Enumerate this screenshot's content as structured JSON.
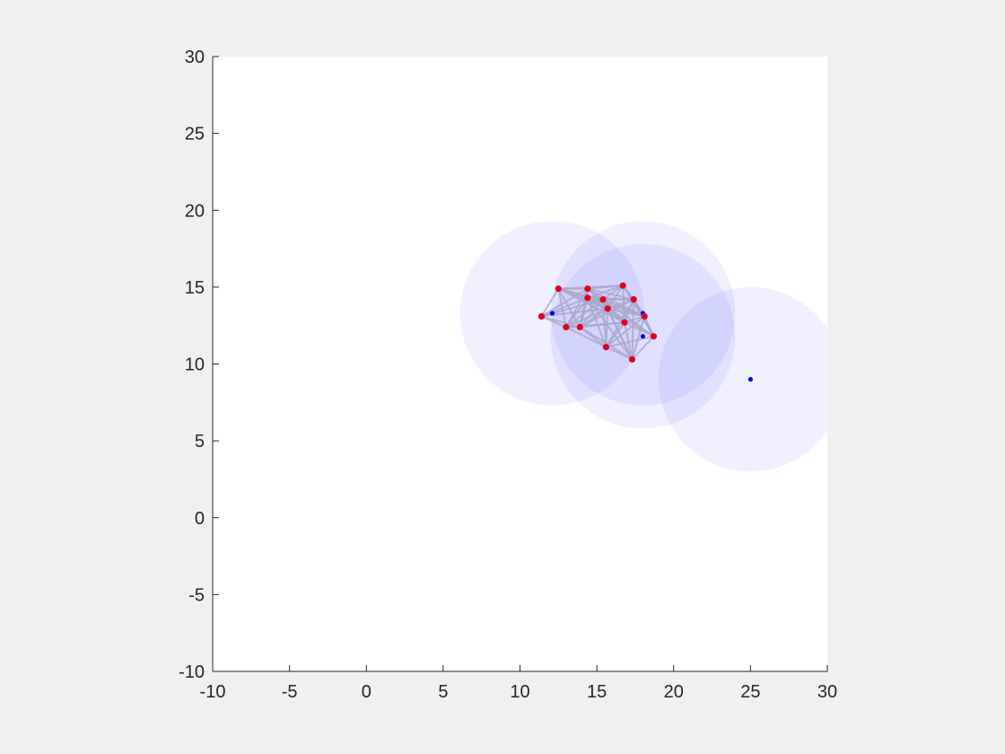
{
  "chart_data": {
    "type": "scatter",
    "title": "",
    "xlabel": "",
    "ylabel": "",
    "xlim": [
      -10,
      30
    ],
    "ylim": [
      -10,
      30
    ],
    "x_ticks": [
      -10,
      -5,
      0,
      5,
      10,
      15,
      20,
      25,
      30
    ],
    "y_ticks": [
      -10,
      -5,
      0,
      5,
      10,
      15,
      20,
      25,
      30
    ],
    "x_tick_labels": [
      "-10",
      "-5",
      "0",
      "5",
      "10",
      "15",
      "20",
      "25",
      "30"
    ],
    "y_tick_labels": [
      "-10",
      "-5",
      "0",
      "5",
      "10",
      "15",
      "20",
      "25",
      "30"
    ],
    "grid": false,
    "coverage_circles": {
      "color": "#0000ff",
      "opacity": 0.06,
      "radius": 6,
      "centers": [
        {
          "x": 12.1,
          "y": 13.3
        },
        {
          "x": 18.0,
          "y": 13.3
        },
        {
          "x": 18.0,
          "y": 11.8
        },
        {
          "x": 25.0,
          "y": 9.0
        }
      ]
    },
    "anchor_points": {
      "color": "#0000ff",
      "points": [
        {
          "x": 12.1,
          "y": 13.3
        },
        {
          "x": 18.0,
          "y": 13.3
        },
        {
          "x": 18.0,
          "y": 11.8
        },
        {
          "x": 25.0,
          "y": 9.0
        }
      ]
    },
    "nodes": {
      "color": "#e00020",
      "points": [
        {
          "x": 11.4,
          "y": 13.1
        },
        {
          "x": 12.5,
          "y": 14.9
        },
        {
          "x": 13.0,
          "y": 12.4
        },
        {
          "x": 13.9,
          "y": 12.4
        },
        {
          "x": 14.4,
          "y": 14.9
        },
        {
          "x": 14.4,
          "y": 14.3
        },
        {
          "x": 15.4,
          "y": 14.2
        },
        {
          "x": 15.7,
          "y": 13.6
        },
        {
          "x": 15.6,
          "y": 11.1
        },
        {
          "x": 16.7,
          "y": 15.1
        },
        {
          "x": 16.8,
          "y": 12.7
        },
        {
          "x": 17.4,
          "y": 14.2
        },
        {
          "x": 17.3,
          "y": 10.3
        },
        {
          "x": 18.1,
          "y": 13.1
        },
        {
          "x": 18.7,
          "y": 11.8
        }
      ]
    },
    "edges": {
      "color": "#a8a8cc",
      "pairs": [
        [
          0,
          1
        ],
        [
          0,
          2
        ],
        [
          0,
          3
        ],
        [
          0,
          4
        ],
        [
          0,
          5
        ],
        [
          0,
          6
        ],
        [
          0,
          7
        ],
        [
          1,
          2
        ],
        [
          1,
          3
        ],
        [
          1,
          4
        ],
        [
          1,
          5
        ],
        [
          1,
          6
        ],
        [
          1,
          7
        ],
        [
          1,
          9
        ],
        [
          1,
          10
        ],
        [
          2,
          3
        ],
        [
          2,
          4
        ],
        [
          2,
          5
        ],
        [
          2,
          6
        ],
        [
          2,
          7
        ],
        [
          2,
          8
        ],
        [
          2,
          10
        ],
        [
          3,
          4
        ],
        [
          3,
          5
        ],
        [
          3,
          6
        ],
        [
          3,
          7
        ],
        [
          3,
          8
        ],
        [
          3,
          10
        ],
        [
          3,
          11
        ],
        [
          3,
          12
        ],
        [
          4,
          5
        ],
        [
          4,
          6
        ],
        [
          4,
          7
        ],
        [
          4,
          9
        ],
        [
          4,
          10
        ],
        [
          4,
          11
        ],
        [
          4,
          13
        ],
        [
          5,
          6
        ],
        [
          5,
          7
        ],
        [
          5,
          8
        ],
        [
          5,
          9
        ],
        [
          5,
          10
        ],
        [
          5,
          11
        ],
        [
          5,
          12
        ],
        [
          5,
          13
        ],
        [
          6,
          7
        ],
        [
          6,
          8
        ],
        [
          6,
          9
        ],
        [
          6,
          10
        ],
        [
          6,
          11
        ],
        [
          6,
          12
        ],
        [
          6,
          13
        ],
        [
          6,
          14
        ],
        [
          7,
          8
        ],
        [
          7,
          9
        ],
        [
          7,
          10
        ],
        [
          7,
          11
        ],
        [
          7,
          12
        ],
        [
          7,
          13
        ],
        [
          7,
          14
        ],
        [
          8,
          10
        ],
        [
          8,
          11
        ],
        [
          8,
          12
        ],
        [
          8,
          13
        ],
        [
          8,
          14
        ],
        [
          9,
          10
        ],
        [
          9,
          11
        ],
        [
          9,
          13
        ],
        [
          9,
          14
        ],
        [
          10,
          11
        ],
        [
          10,
          12
        ],
        [
          10,
          13
        ],
        [
          10,
          14
        ],
        [
          11,
          12
        ],
        [
          11,
          13
        ],
        [
          11,
          14
        ],
        [
          12,
          13
        ],
        [
          12,
          14
        ],
        [
          13,
          14
        ]
      ]
    }
  }
}
